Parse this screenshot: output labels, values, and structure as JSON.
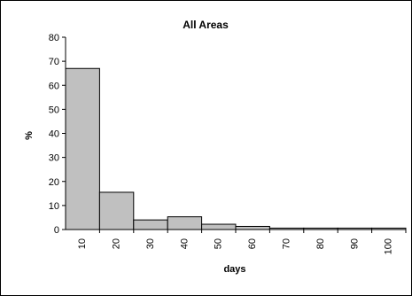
{
  "chart_data": {
    "type": "bar",
    "title": "All Areas",
    "xlabel": "days",
    "ylabel": "%",
    "categories": [
      "10",
      "20",
      "30",
      "40",
      "50",
      "60",
      "70",
      "80",
      "90",
      "100"
    ],
    "values": [
      67,
      15.5,
      4,
      5.3,
      2.2,
      1.3,
      0.6,
      0.6,
      0.6,
      0.6
    ],
    "ylim": [
      0,
      80
    ],
    "yticks": [
      "0",
      "10",
      "20",
      "30",
      "40",
      "50",
      "60",
      "70",
      "80"
    ],
    "grid": false,
    "legend": "none",
    "colors": {
      "bar_fill": "#c0c0c0",
      "bar_stroke": "#000000",
      "axis": "#000000",
      "frame": "#000000"
    }
  }
}
